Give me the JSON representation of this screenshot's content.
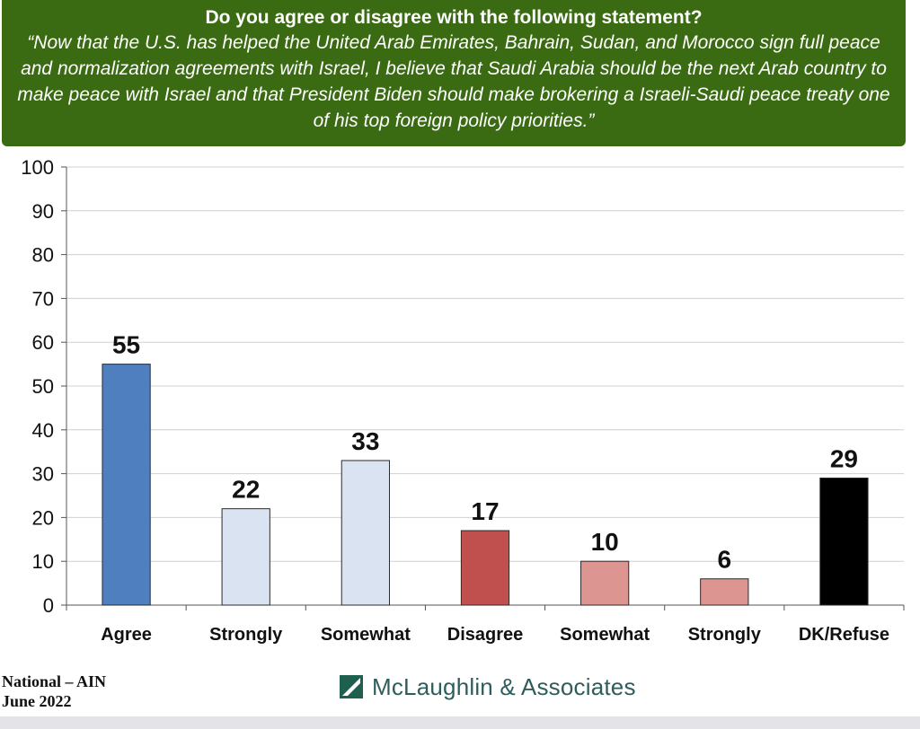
{
  "header": {
    "question": "Do you agree or disagree with the following statement?",
    "statement": "“Now that the U.S. has helped the United Arab Emirates, Bahrain, Sudan, and Morocco sign full peace and normalization agreements with Israel, I believe that Saudi Arabia should be the next Arab country to make peace with Israel and that President Biden should make brokering a Israeli-Saudi peace treaty one of his top foreign policy priorities.”"
  },
  "footer": {
    "line1": "National – AIN",
    "line2": "June 2022",
    "logo_text": "McLaughlin & Associates",
    "logo_icon": "mclaughlin-logo-icon"
  },
  "colors": {
    "header_bg": "#3a6b12",
    "agree": "#4f7fbf",
    "agree_sub": "#d9e3f1",
    "disagree": "#c0504d",
    "disagree_sub": "#dd9592",
    "dk": "#000000"
  },
  "chart_data": {
    "type": "bar",
    "categories": [
      "Agree",
      "Strongly",
      "Somewhat",
      "Disagree",
      "Somewhat",
      "Strongly",
      "DK/Refuse"
    ],
    "values": [
      55,
      22,
      33,
      17,
      10,
      6,
      29
    ],
    "bar_colors": [
      "#4f7fbf",
      "#d9e3f1",
      "#d9e3f1",
      "#c0504d",
      "#dd9592",
      "#dd9592",
      "#000000"
    ],
    "data_labels": [
      "55",
      "22",
      "33",
      "17",
      "10",
      "6",
      "29"
    ],
    "ylim": [
      0,
      100
    ],
    "yticks": [
      0,
      10,
      20,
      30,
      40,
      50,
      60,
      70,
      80,
      90,
      100
    ],
    "grid": true,
    "legend": "none"
  }
}
